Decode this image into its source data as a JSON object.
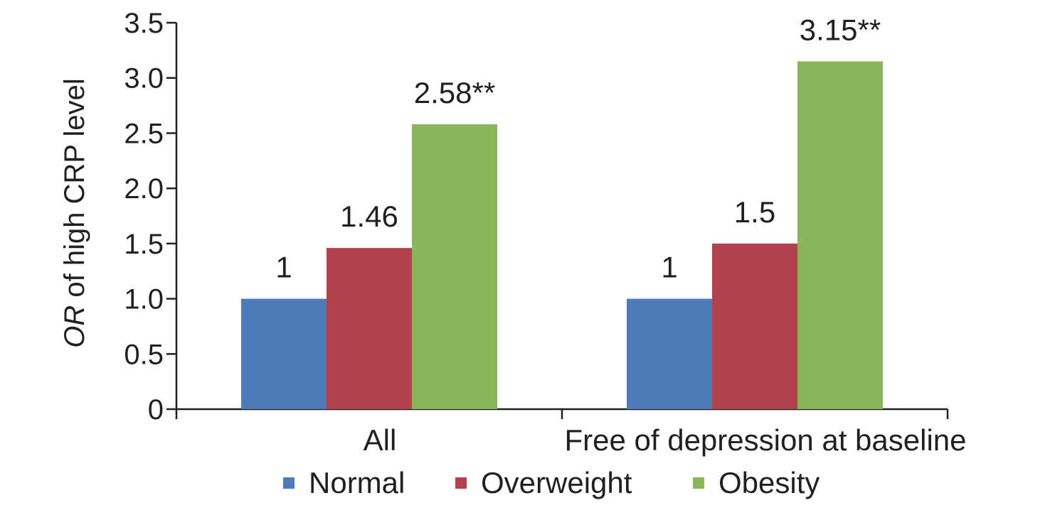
{
  "chart_data": {
    "type": "bar",
    "categories": [
      "All",
      "Free of depression at baseline"
    ],
    "series": [
      {
        "name": "Normal",
        "color": "#4f7bba",
        "values": [
          1,
          1
        ],
        "labels": [
          "1",
          "1"
        ]
      },
      {
        "name": "Overweight",
        "color": "#b3424e",
        "values": [
          1.46,
          1.5
        ],
        "labels": [
          "1.46",
          "1.5"
        ]
      },
      {
        "name": "Obesity",
        "color": "#8ab559",
        "values": [
          2.58,
          3.15
        ],
        "labels": [
          "2.58**",
          "3.15**"
        ]
      }
    ],
    "yticks": [
      0,
      0.5,
      1.0,
      1.5,
      2.0,
      2.5,
      3.0,
      3.5
    ],
    "ytick_labels": [
      "0",
      "0.5",
      "1.0",
      "1.5",
      "2.0",
      "2.5",
      "3.0",
      "3.5"
    ],
    "ylim": [
      0,
      3.5
    ],
    "ylabel_italic": "OR",
    "ylabel_rest": " of high CRP level",
    "legend_position": "bottom",
    "grid": false
  }
}
